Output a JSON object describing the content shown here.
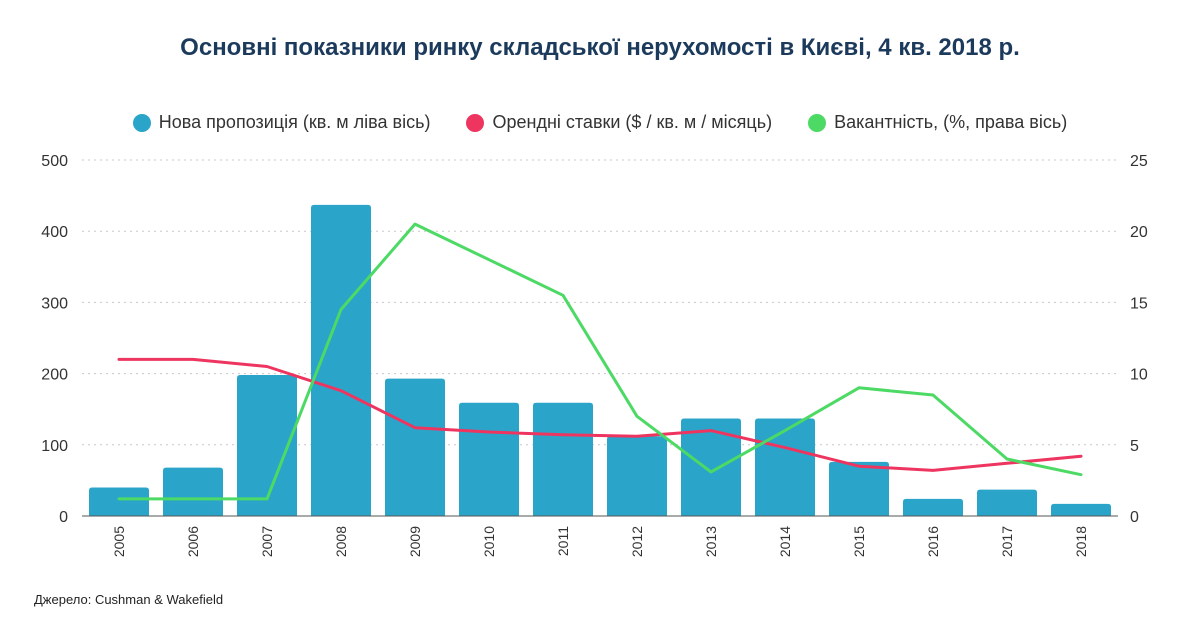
{
  "chart_data": {
    "type": "bar",
    "title": "Основні показники ринку складської нерухомості в Києві, 4 кв. 2018 р.",
    "source": "Джерело: Cushman & Wakefield",
    "categories": [
      "2005",
      "2006",
      "2007",
      "2008",
      "2009",
      "2010",
      "2011",
      "2012",
      "2013",
      "2014",
      "2015",
      "2016",
      "2017",
      "2018"
    ],
    "ylim_left": [
      0,
      500
    ],
    "yticks_left": [
      "0",
      "100",
      "200",
      "300",
      "400",
      "500"
    ],
    "ylim_right": [
      0,
      25
    ],
    "yticks_right": [
      "0",
      "5",
      "10",
      "15",
      "20",
      "25"
    ],
    "grid": true,
    "legend_position": "top",
    "series": [
      {
        "name": "Нова пропозиція (кв. м ліва вісь)",
        "kind": "bar",
        "axis": "left",
        "color": "#2aa5c9",
        "values": [
          40,
          68,
          198,
          437,
          193,
          159,
          159,
          112,
          137,
          137,
          76,
          24,
          37,
          17
        ]
      },
      {
        "name": "Орендні ставки ($ / кв. м / місяць)",
        "kind": "line",
        "axis": "right",
        "color": "#ee3560",
        "values": [
          11.0,
          11.0,
          10.5,
          8.8,
          6.2,
          5.9,
          5.7,
          5.6,
          6.0,
          4.8,
          3.5,
          3.2,
          3.7,
          4.2
        ]
      },
      {
        "name": "Вакантність, (%, права вісь)",
        "kind": "line",
        "axis": "right",
        "color": "#4cd964",
        "values": [
          1.2,
          1.2,
          1.2,
          14.5,
          20.5,
          18.0,
          15.5,
          7.0,
          3.1,
          6.0,
          9.0,
          8.5,
          4.0,
          2.9
        ]
      }
    ]
  }
}
